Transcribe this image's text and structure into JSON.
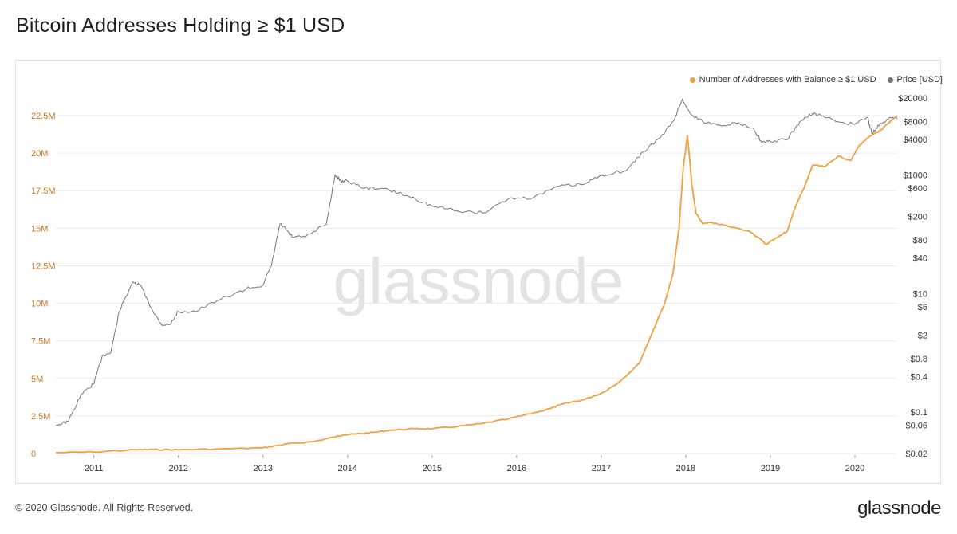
{
  "title": "Bitcoin Addresses Holding ≥ $1 USD",
  "footer": {
    "copyright": "© 2020 Glassnode. All Rights Reserved.",
    "brand": "glassnode"
  },
  "watermark": "glassnode",
  "colors": {
    "addresses": "#f0a040",
    "price": "#777777",
    "left_axis": "#c87820",
    "grid": "#ececec",
    "watermark": "#e3e3e3"
  },
  "chart_data": {
    "type": "line",
    "legend_position": "top-right",
    "grid": true,
    "x_range": [
      2010.55,
      2020.5
    ],
    "x_ticks": [
      "2011",
      "2012",
      "2013",
      "2014",
      "2015",
      "2016",
      "2017",
      "2018",
      "2019",
      "2020"
    ],
    "y_left": {
      "range": [
        0,
        22500000
      ],
      "scale": "linear",
      "ticks": [
        "0",
        "2.5M",
        "5M",
        "7.5M",
        "10M",
        "12.5M",
        "15M",
        "17.5M",
        "20M",
        "22.5M"
      ]
    },
    "y_right": {
      "range": [
        0.02,
        20000
      ],
      "scale": "log",
      "ticks": [
        "$0.02",
        "$0.06",
        "$0.1",
        "$0.4",
        "$0.8",
        "$2",
        "$6",
        "$10",
        "$40",
        "$80",
        "$200",
        "$600",
        "$1000",
        "$4000",
        "$8000",
        "$20000"
      ]
    },
    "series": [
      {
        "name": "Number of Addresses with Balance ≥ $1 USD",
        "axis": "left",
        "x": [
          2010.55,
          2011.0,
          2011.5,
          2011.7,
          2012.0,
          2012.5,
          2013.0,
          2013.2,
          2013.3,
          2013.6,
          2013.85,
          2013.95,
          2014.1,
          2014.3,
          2014.5,
          2014.8,
          2015.0,
          2015.3,
          2015.6,
          2015.9,
          2016.2,
          2016.4,
          2016.55,
          2016.8,
          2017.0,
          2017.2,
          2017.45,
          2017.6,
          2017.75,
          2017.85,
          2017.92,
          2017.97,
          2018.02,
          2018.07,
          2018.12,
          2018.2,
          2018.3,
          2018.45,
          2018.6,
          2018.75,
          2018.9,
          2018.95,
          2019.05,
          2019.2,
          2019.3,
          2019.4,
          2019.5,
          2019.65,
          2019.8,
          2019.95,
          2020.05,
          2020.15,
          2020.3,
          2020.4,
          2020.5
        ],
        "values": [
          60000,
          100000,
          250000,
          270000,
          250000,
          300000,
          380000,
          550000,
          650000,
          800000,
          1100000,
          1250000,
          1300000,
          1400000,
          1550000,
          1650000,
          1650000,
          1800000,
          2000000,
          2300000,
          2700000,
          3000000,
          3300000,
          3600000,
          4000000,
          4700000,
          6000000,
          8000000,
          10000000,
          12000000,
          15000000,
          19000000,
          21200000,
          18000000,
          16000000,
          15300000,
          15400000,
          15200000,
          15000000,
          14800000,
          14200000,
          13900000,
          14300000,
          14800000,
          16500000,
          17700000,
          19200000,
          19100000,
          19800000,
          19500000,
          20500000,
          21000000,
          21500000,
          22000000,
          22500000
        ]
      },
      {
        "name": "Price [USD]",
        "axis": "right",
        "x": [
          2010.55,
          2010.7,
          2010.85,
          2011.0,
          2011.1,
          2011.2,
          2011.3,
          2011.45,
          2011.55,
          2011.7,
          2011.8,
          2011.9,
          2012.0,
          2012.2,
          2012.5,
          2012.8,
          2013.0,
          2013.1,
          2013.2,
          2013.3,
          2013.35,
          2013.5,
          2013.75,
          2013.85,
          2013.92,
          2014.0,
          2014.2,
          2014.4,
          2014.6,
          2014.8,
          2015.0,
          2015.3,
          2015.6,
          2015.9,
          2016.2,
          2016.5,
          2016.8,
          2017.0,
          2017.3,
          2017.5,
          2017.7,
          2017.85,
          2017.96,
          2018.05,
          2018.2,
          2018.4,
          2018.6,
          2018.8,
          2018.9,
          2019.0,
          2019.2,
          2019.35,
          2019.5,
          2019.6,
          2019.8,
          2020.0,
          2020.15,
          2020.2,
          2020.3,
          2020.45,
          2020.5
        ],
        "values": [
          0.06,
          0.07,
          0.2,
          0.3,
          0.9,
          1.0,
          5.0,
          15.0,
          14.0,
          5.0,
          3.0,
          3.0,
          5.0,
          5.0,
          8.0,
          12.0,
          14.0,
          30.0,
          150.0,
          110.0,
          90.0,
          90.0,
          150.0,
          1000.0,
          800.0,
          800.0,
          600.0,
          600.0,
          500.0,
          400.0,
          300.0,
          250.0,
          230.0,
          400.0,
          420.0,
          650.0,
          700.0,
          1000.0,
          1200.0,
          2500.0,
          4300.0,
          8000.0,
          19000.0,
          11000.0,
          8000.0,
          7000.0,
          7500.0,
          6300.0,
          3500.0,
          3700.0,
          4000.0,
          8000.0,
          11000.0,
          10000.0,
          8000.0,
          7200.0,
          9500.0,
          5000.0,
          7500.0,
          9500.0,
          9200.0
        ]
      }
    ]
  }
}
